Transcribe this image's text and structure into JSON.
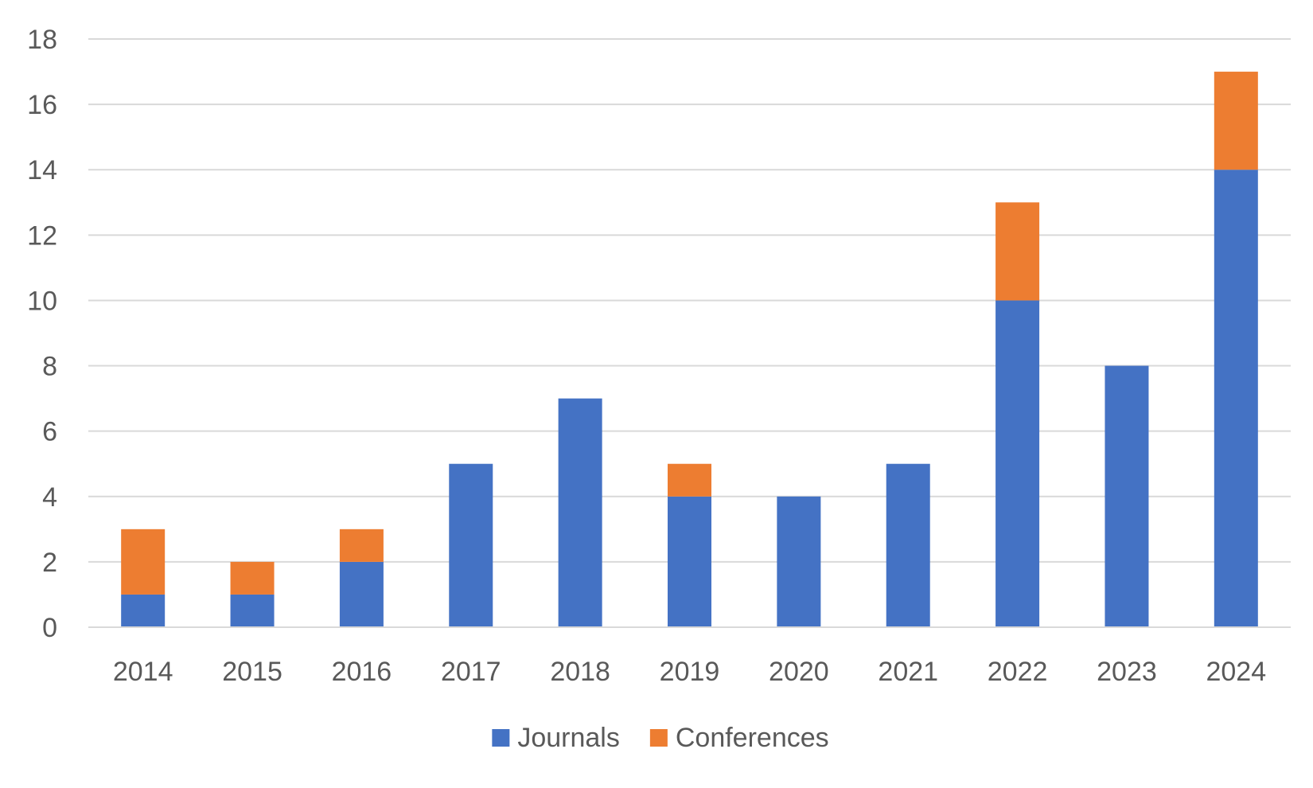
{
  "chart_data": {
    "type": "bar",
    "stacked": true,
    "categories": [
      "2014",
      "2015",
      "2016",
      "2017",
      "2018",
      "2019",
      "2020",
      "2021",
      "2022",
      "2023",
      "2024"
    ],
    "series": [
      {
        "name": "Journals",
        "color": "#4472c4",
        "values": [
          1,
          1,
          2,
          5,
          7,
          4,
          4,
          5,
          10,
          8,
          14
        ]
      },
      {
        "name": "Conferences",
        "color": "#ed7d31",
        "values": [
          2,
          1,
          1,
          0,
          0,
          1,
          0,
          0,
          3,
          0,
          3
        ]
      }
    ],
    "yticks": [
      "0",
      "2",
      "4",
      "6",
      "8",
      "10",
      "12",
      "14",
      "16",
      "18"
    ],
    "ylim": [
      0,
      18
    ],
    "grid": true,
    "legend": "bottom-center"
  }
}
